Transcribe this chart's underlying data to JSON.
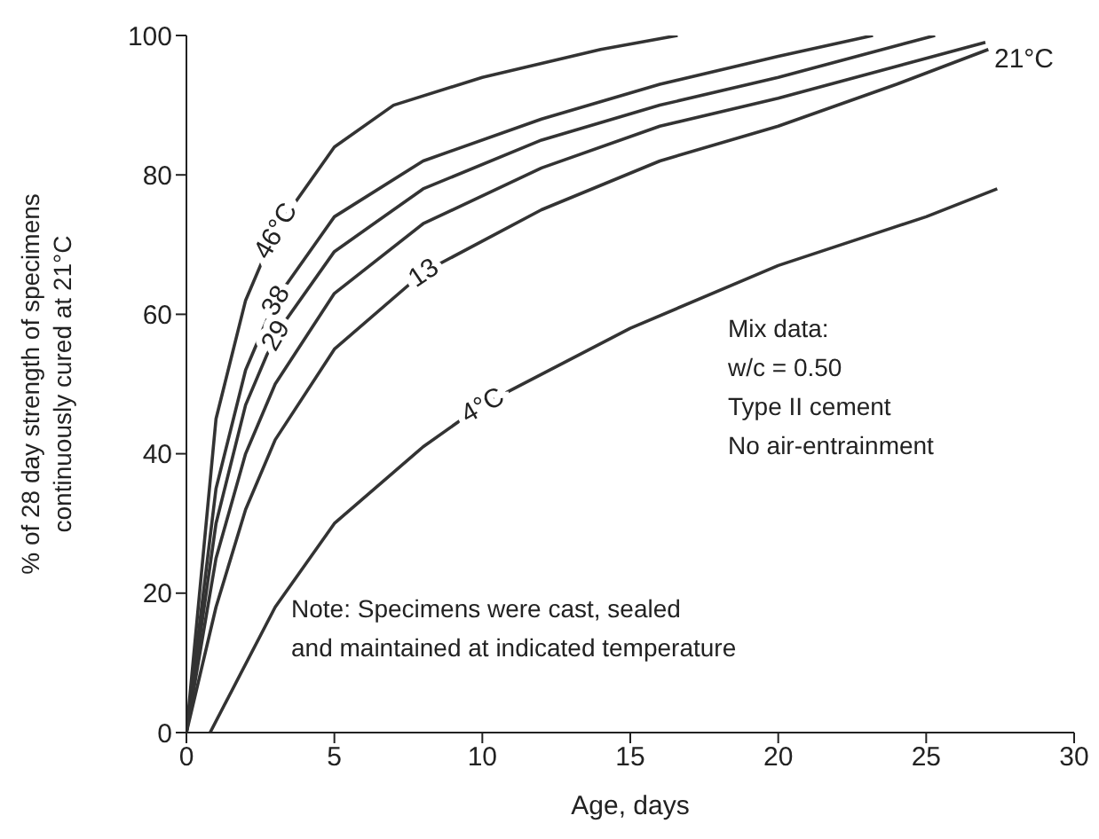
{
  "chart_data": {
    "type": "line",
    "xlabel": "Age, days",
    "ylabel": "% of 28 day strength of specimens\ncontinuously cured at 21°C",
    "xlim": [
      0,
      30
    ],
    "xticks": [
      0,
      5,
      10,
      15,
      20,
      25,
      30
    ],
    "ylim": [
      0,
      100
    ],
    "yticks": [
      0,
      20,
      40,
      60,
      80,
      100
    ],
    "grid": false,
    "legend": false,
    "marker": "none",
    "line_style": "solid",
    "series": [
      {
        "name": "46°C",
        "color": "#333333",
        "x": [
          0,
          1,
          2,
          3,
          5,
          7,
          10,
          14,
          16.6
        ],
        "values": [
          0,
          45,
          62,
          72,
          84,
          90,
          94,
          98,
          100
        ]
      },
      {
        "name": "38",
        "color": "#333333",
        "x": [
          0,
          1,
          2,
          3,
          5,
          8,
          12,
          16,
          20,
          23.2
        ],
        "values": [
          0,
          35,
          52,
          62,
          74,
          82,
          88,
          93,
          97,
          100
        ]
      },
      {
        "name": "29",
        "color": "#333333",
        "x": [
          0,
          1,
          2,
          3,
          5,
          8,
          12,
          16,
          20,
          25.3
        ],
        "values": [
          0,
          30,
          47,
          57,
          69,
          78,
          85,
          90,
          94,
          100
        ]
      },
      {
        "name": "21°C",
        "color": "#333333",
        "x": [
          0,
          1,
          2,
          3,
          5,
          8,
          12,
          16,
          20,
          27
        ],
        "values": [
          0,
          25,
          40,
          50,
          63,
          73,
          81,
          87,
          91,
          99
        ]
      },
      {
        "name": "13",
        "color": "#333333",
        "x": [
          0,
          1,
          2,
          3,
          5,
          8,
          12,
          16,
          20,
          24,
          27.1
        ],
        "values": [
          0,
          18,
          32,
          42,
          55,
          66,
          75,
          82,
          87,
          93,
          98
        ]
      },
      {
        "name": "4°C",
        "color": "#333333",
        "x": [
          0.8,
          3,
          5,
          8,
          10,
          15,
          20,
          25,
          27.4
        ],
        "values": [
          0,
          18,
          30,
          41,
          47,
          58,
          67,
          74,
          78
        ]
      }
    ],
    "annotations": [
      "Mix data:\nw/c = 0.50\nType II cement\nNo air-entrainment",
      "Note: Specimens were cast, sealed\nand maintained at indicated temperature"
    ]
  }
}
